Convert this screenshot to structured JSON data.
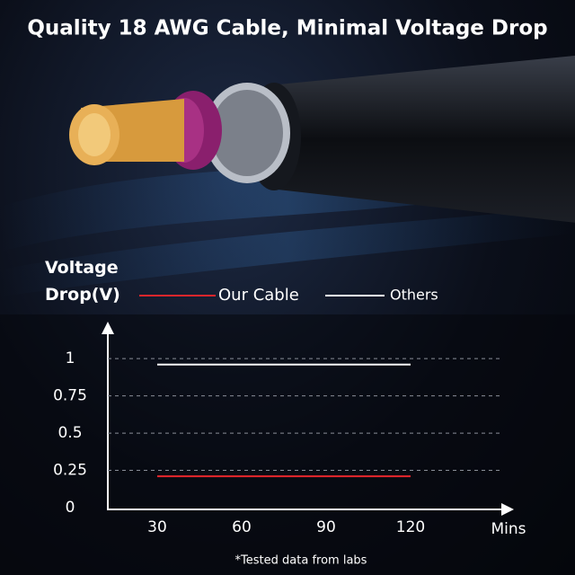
{
  "header": {
    "title": "Quality 18 AWG Cable, Minimal Voltage Drop"
  },
  "chart_data": {
    "type": "line",
    "y_label": "Voltage Drop(V)",
    "x_label": "Mins",
    "categories": [
      "30",
      "60",
      "90",
      "120"
    ],
    "series": [
      {
        "name": "Our Cable",
        "color": "#e8262c",
        "values": [
          0.21,
          0.21,
          0.21,
          0.21
        ]
      },
      {
        "name": "Others",
        "color": "#ffffff",
        "values": [
          0.96,
          0.96,
          0.96,
          0.96
        ]
      }
    ],
    "ylim": [
      0,
      1.2
    ],
    "yticks": [
      0,
      0.25,
      0.5,
      0.75,
      1
    ],
    "grid": true
  },
  "footnote": "*Tested data from labs"
}
